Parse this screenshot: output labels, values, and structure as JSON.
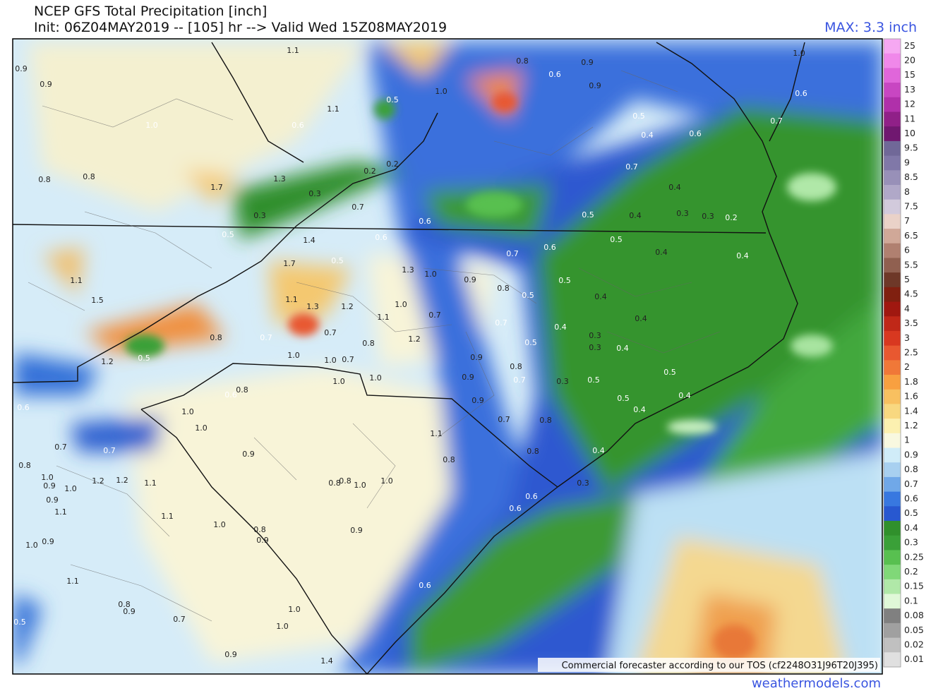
{
  "header": {
    "title": "NCEP GFS Total Precipitation [inch]",
    "init": "Init: 06Z04MAY2019 -- [105] hr --> Valid Wed 15Z08MAY2019",
    "max": "MAX: 3.3 inch"
  },
  "legend": [
    {
      "label": "25",
      "color": "#f6a8f2"
    },
    {
      "label": "20",
      "color": "#f088ea"
    },
    {
      "label": "15",
      "color": "#e066da"
    },
    {
      "label": "13",
      "color": "#c846c2"
    },
    {
      "label": "12",
      "color": "#b030aa"
    },
    {
      "label": "11",
      "color": "#902088"
    },
    {
      "label": "10",
      "color": "#701870"
    },
    {
      "label": "9.5",
      "color": "#706898"
    },
    {
      "label": "9",
      "color": "#8078a8"
    },
    {
      "label": "8.5",
      "color": "#9890b8"
    },
    {
      "label": "8",
      "color": "#b0a8c8"
    },
    {
      "label": "7.5",
      "color": "#d2cadc"
    },
    {
      "label": "7",
      "color": "#ead2c8"
    },
    {
      "label": "6.5",
      "color": "#d0a898"
    },
    {
      "label": "6",
      "color": "#b08070"
    },
    {
      "label": "5.5",
      "color": "#906050"
    },
    {
      "label": "5",
      "color": "#6e3828"
    },
    {
      "label": "4.5",
      "color": "#802010"
    },
    {
      "label": "4",
      "color": "#a01810"
    },
    {
      "label": "3.5",
      "color": "#c02818"
    },
    {
      "label": "3",
      "color": "#d83820"
    },
    {
      "label": "2.5",
      "color": "#e85830"
    },
    {
      "label": "2",
      "color": "#f07838"
    },
    {
      "label": "1.8",
      "color": "#f8a040"
    },
    {
      "label": "1.6",
      "color": "#f8c060"
    },
    {
      "label": "1.4",
      "color": "#f8d880"
    },
    {
      "label": "1.2",
      "color": "#fcf0b0"
    },
    {
      "label": "1",
      "color": "#f8f8e0"
    },
    {
      "label": "0.9",
      "color": "#d0ecf8"
    },
    {
      "label": "0.8",
      "color": "#a8d0f0"
    },
    {
      "label": "0.7",
      "color": "#70a8e8"
    },
    {
      "label": "0.6",
      "color": "#3878e0"
    },
    {
      "label": "0.5",
      "color": "#2858d0"
    },
    {
      "label": "0.4",
      "color": "#30902c"
    },
    {
      "label": "0.3",
      "color": "#3aa038"
    },
    {
      "label": "0.25",
      "color": "#58c050"
    },
    {
      "label": "0.2",
      "color": "#80d878"
    },
    {
      "label": "0.15",
      "color": "#b0e8a8"
    },
    {
      "label": "0.1",
      "color": "#e0f8d8"
    },
    {
      "label": "0.08",
      "color": "#808080"
    },
    {
      "label": "0.05",
      "color": "#a0a0a0"
    },
    {
      "label": "0.02",
      "color": "#c0c0c0"
    },
    {
      "label": "0.01",
      "color": "#e0e0e0"
    }
  ],
  "map": {
    "labels": [
      "1.1",
      "0.9",
      "0.9",
      "1.0",
      "0.6",
      "1.1",
      "0.5",
      "1.0",
      "0.8",
      "0.6",
      "0.9",
      "0.9",
      "0.5",
      "0.4",
      "0.6",
      "0.7",
      "0.6",
      "1.0",
      "0.8",
      "0.8",
      "1.3",
      "1.7",
      "0.2",
      "0.2",
      "0.3",
      "0.3",
      "0.5",
      "0.7",
      "0.6",
      "0.6",
      "1.4",
      "1.7",
      "0.5",
      "0.7",
      "0.4",
      "0.5",
      "0.4",
      "0.3",
      "0.3",
      "0.2",
      "0.5",
      "0.6",
      "0.7",
      "0.4",
      "0.4",
      "1.3",
      "1.0",
      "0.9",
      "0.8",
      "0.5",
      "0.5",
      "0.4",
      "1.5",
      "1.1",
      "1.1",
      "1.3",
      "1.2",
      "1.0",
      "1.1",
      "0.7",
      "0.7",
      "0.4",
      "0.4",
      "0.3",
      "0.3",
      "0.4",
      "0.5",
      "0.8",
      "0.7",
      "0.7",
      "0.8",
      "1.2",
      "0.5",
      "1.2",
      "1.0",
      "1.0",
      "0.7",
      "0.9",
      "0.8",
      "1.0",
      "1.0",
      "0.9",
      "0.7",
      "0.3",
      "0.5",
      "0.5",
      "0.4",
      "0.5",
      "0.4",
      "0.8",
      "0.6",
      "0.6",
      "1.0",
      "1.0",
      "0.9",
      "0.7",
      "0.8",
      "1.1",
      "0.8",
      "0.8",
      "0.7",
      "0.7",
      "0.9",
      "0.4",
      "0.8",
      "1.0",
      "1.2",
      "1.2",
      "1.1",
      "0.9",
      "1.0",
      "0.9",
      "0.8",
      "0.8",
      "1.0",
      "1.0",
      "0.3",
      "0.6",
      "0.6",
      "1.1",
      "1.1",
      "1.0",
      "0.8",
      "0.9",
      "0.9",
      "1.0",
      "0.9",
      "1.1",
      "0.6",
      "0.8",
      "0.9",
      "0.7",
      "1.0",
      "1.0",
      "0.5",
      "0.9",
      "1.4"
    ]
  },
  "footer": {
    "tos": "Commercial forecaster according to our TOS (cf2248O31J96T20J395)",
    "site": "weathermodels.com"
  }
}
